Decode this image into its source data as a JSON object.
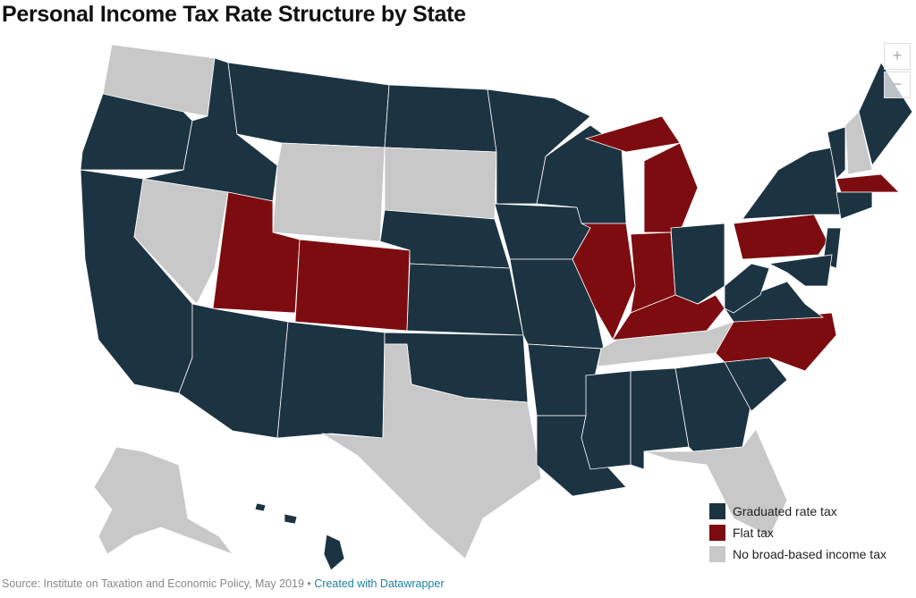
{
  "header": {
    "title": "Personal Income Tax Rate Structure by State"
  },
  "zoom": {
    "in": "+",
    "out": "−"
  },
  "legend": [
    {
      "label": "Graduated rate tax",
      "color": "#1c3342"
    },
    {
      "label": "Flat tax",
      "color": "#7d0c10"
    },
    {
      "label": "No broad-based income tax",
      "color": "#c8c8c8"
    }
  ],
  "footer": {
    "source": "Source: Institute on Taxation and Economic Policy, May 2019",
    "separator": "•",
    "credit": "Created with Datawrapper"
  }
}
